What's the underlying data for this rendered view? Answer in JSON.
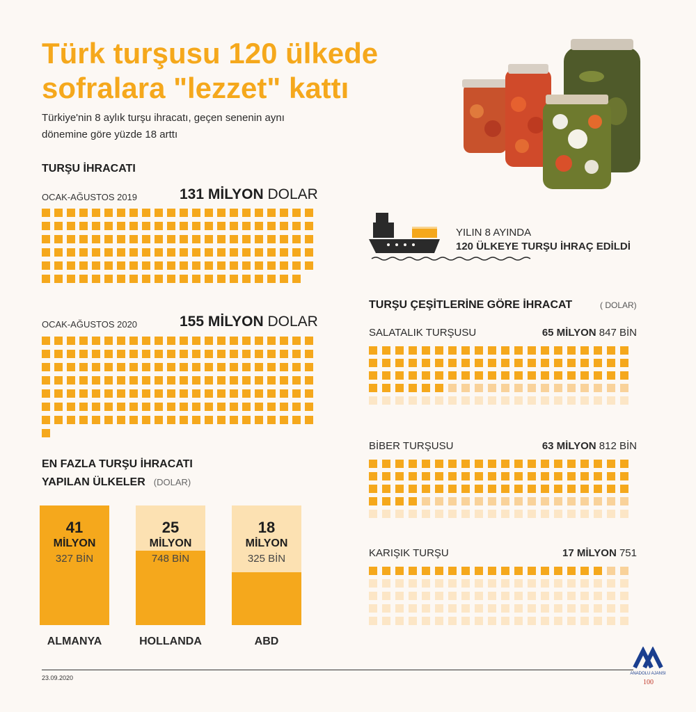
{
  "title_line1": "Türk turşusu 120 ülkede",
  "title_line2": "sofralara \"lezzet\" kattı",
  "subtitle_line1": "Türkiye'nin 8 aylık turşu ihracatı, geçen senenin aynı",
  "subtitle_line2": "dönemine göre yüzde 18 arttı",
  "export_section": {
    "heading": "TURŞU İHRACATI",
    "y2019": {
      "label": "OCAK-AĞUSTOS 2019",
      "amount_bold": "131 MİLYON",
      "amount_unit": "DOLAR",
      "squares": 131
    },
    "y2020": {
      "label": "OCAK-AĞUSTOS 2020",
      "amount_bold": "155 MİLYON",
      "amount_unit": "DOLAR",
      "squares": 155
    }
  },
  "ship": {
    "line1": "YILIN 8 AYINDA",
    "line2": "120 ÜLKEYE TURŞU İHRAÇ EDİLDİ"
  },
  "varieties": {
    "heading": "TURŞU ÇEŞİTLERİNE GÖRE İHRACAT",
    "unit": "( DOLAR)",
    "items": [
      {
        "name": "SALATALIK  TURŞUSU",
        "amount_bold": "65 MİLYON",
        "amount_rest": "847 BİN",
        "value": 65.847
      },
      {
        "name": "BİBER TURŞUSU",
        "amount_bold": "63 MİLYON",
        "amount_rest": "812 BİN",
        "value": 63.812
      },
      {
        "name": "KARIŞIK TURŞU",
        "amount_bold": "17 MİLYON",
        "amount_rest": "751",
        "value": 17.751
      }
    ]
  },
  "countries": {
    "heading_line1": "EN FAZLA TURŞU İHRACATI",
    "heading_line2": "YAPILAN ÜLKELER",
    "unit": "(DOLAR)",
    "items": [
      {
        "name": "ALMANYA",
        "num": "41",
        "mil": "MİLYON",
        "bin": "327 BİN",
        "value": 41.327
      },
      {
        "name": "HOLLANDA",
        "num": "25",
        "mil": "MİLYON",
        "bin": "748 BİN",
        "value": 25.748
      },
      {
        "name": "ABD",
        "num": "18",
        "mil": "MİLYON",
        "bin": "325 BİN",
        "value": 18.325
      }
    ]
  },
  "date": "23.09.2020",
  "logo_text": "ANADOLU AJANSI",
  "colors": {
    "accent": "#f5a81c",
    "light": "#f9d29a",
    "pale": "#fce6c6"
  }
}
